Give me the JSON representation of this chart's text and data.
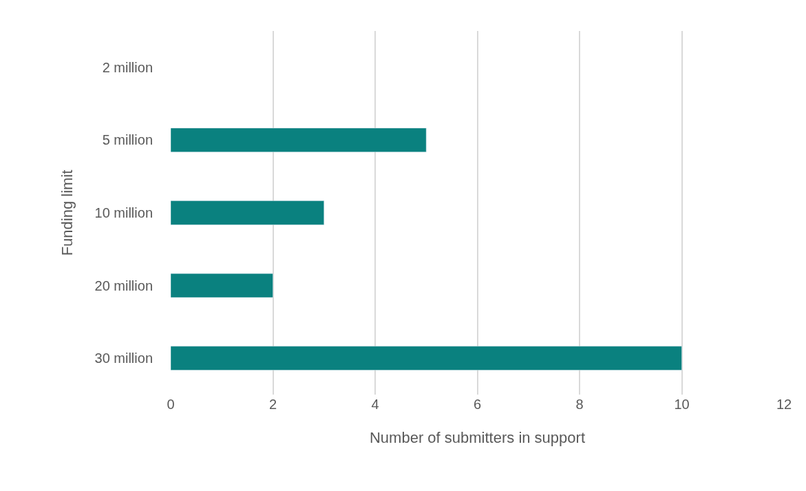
{
  "chart_data": {
    "type": "bar",
    "orientation": "horizontal",
    "xlabel": "Number of submitters in support",
    "ylabel": "Funding limit",
    "categories": [
      "2 million",
      "5 million",
      "10 million",
      "20 million",
      "30 million"
    ],
    "values": [
      null,
      5,
      3,
      2,
      10
    ],
    "color": "#0a817f",
    "xlim": [
      0,
      12
    ],
    "xticks": [
      0,
      2,
      4,
      6,
      8,
      10,
      12
    ],
    "grid": "x",
    "legend": false
  }
}
